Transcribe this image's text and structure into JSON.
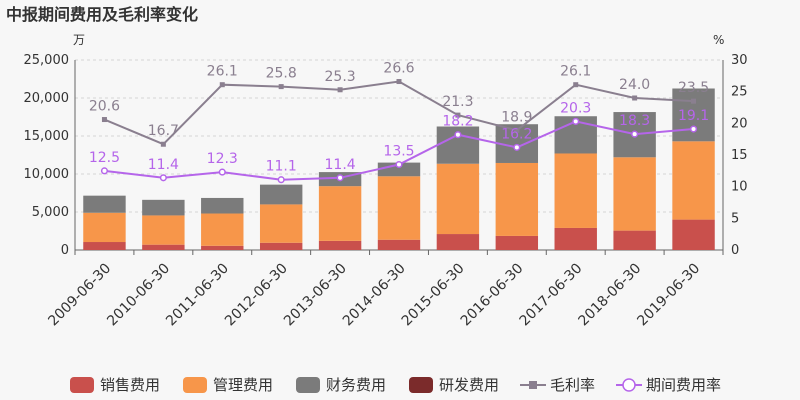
{
  "chart_data": {
    "type": "bar",
    "title": "中报期间费用及毛利率变化",
    "y_left_unit": "万",
    "y_right_unit": "%",
    "ylim_left": [
      0,
      25000
    ],
    "ylim_right": [
      0,
      30
    ],
    "y_left_ticks": [
      "0",
      "5,000",
      "10,000",
      "15,000",
      "20,000",
      "25,000"
    ],
    "y_right_ticks": [
      "0",
      "5",
      "10",
      "15",
      "20",
      "25",
      "30"
    ],
    "categories": [
      "2009-06-30",
      "2010-06-30",
      "2011-06-30",
      "2012-06-30",
      "2013-06-30",
      "2014-06-30",
      "2015-06-30",
      "2016-06-30",
      "2017-06-30",
      "2018-06-30",
      "2019-06-30"
    ],
    "series": [
      {
        "name": "销售费用",
        "kind": "bar",
        "axis": "left",
        "color": "#c9504c",
        "values": [
          1050,
          700,
          550,
          950,
          1200,
          1350,
          2100,
          1850,
          2900,
          2550,
          4000
        ]
      },
      {
        "name": "管理费用",
        "kind": "bar",
        "axis": "left",
        "color": "#f7964a",
        "values": [
          3850,
          3850,
          4250,
          5050,
          7200,
          8350,
          9250,
          9600,
          9800,
          9650,
          10300
        ]
      },
      {
        "name": "财务费用",
        "kind": "bar",
        "axis": "left",
        "color": "#7b7b7b",
        "values": [
          2250,
          2050,
          2050,
          2600,
          1850,
          1800,
          4900,
          5100,
          4900,
          5950,
          6950
        ]
      },
      {
        "name": "研发费用",
        "kind": "bar",
        "axis": "left",
        "color": "#7b2b2b",
        "values": [
          0,
          0,
          0,
          0,
          0,
          0,
          0,
          0,
          0,
          0,
          0
        ]
      },
      {
        "name": "毛利率",
        "kind": "line",
        "axis": "right",
        "color": "#8a7f8f",
        "values": [
          20.6,
          16.7,
          26.1,
          25.8,
          25.3,
          26.6,
          21.3,
          18.9,
          26.1,
          24.0,
          23.5
        ],
        "labels": [
          "20.6",
          "16.7",
          "26.1",
          "25.8",
          "25.3",
          "26.6",
          "21.3",
          "18.9",
          "26.1",
          "24.0",
          "23.5"
        ]
      },
      {
        "name": "期间费用率",
        "kind": "line",
        "axis": "right",
        "color": "#b565ea",
        "values": [
          12.5,
          11.4,
          12.3,
          11.1,
          11.4,
          13.5,
          18.2,
          16.2,
          20.3,
          18.3,
          19.1
        ],
        "labels": [
          "12.5",
          "11.4",
          "12.3",
          "11.1",
          "11.4",
          "13.5",
          "18.2",
          "16.2",
          "20.3",
          "18.3",
          "19.1"
        ]
      }
    ],
    "grid": true,
    "legend_position": "bottom"
  }
}
